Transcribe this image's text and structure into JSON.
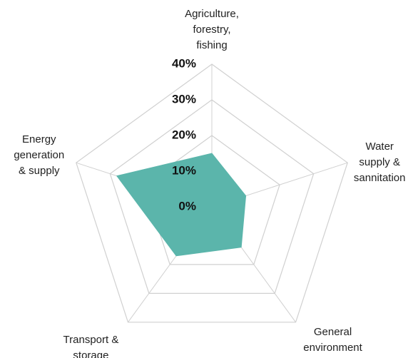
{
  "chart_data": {
    "type": "radar",
    "categories": [
      "Agriculture,\nforestry,\nfishing",
      "Water\nsupply &\nsannitation",
      "General\nenvironment\nal protection",
      "Transport &\nstorage",
      "Energy\ngeneration\n& supply"
    ],
    "values": [
      15,
      10,
      14,
      17,
      28
    ],
    "color": "#5bb5ab",
    "ylim": [
      0,
      40
    ],
    "yticks": [
      {
        "value": 0,
        "label": "0%"
      },
      {
        "value": 10,
        "label": "10%"
      },
      {
        "value": 20,
        "label": "20%"
      },
      {
        "value": 30,
        "label": "30%"
      },
      {
        "value": 40,
        "label": "40%"
      }
    ],
    "grid": true
  }
}
